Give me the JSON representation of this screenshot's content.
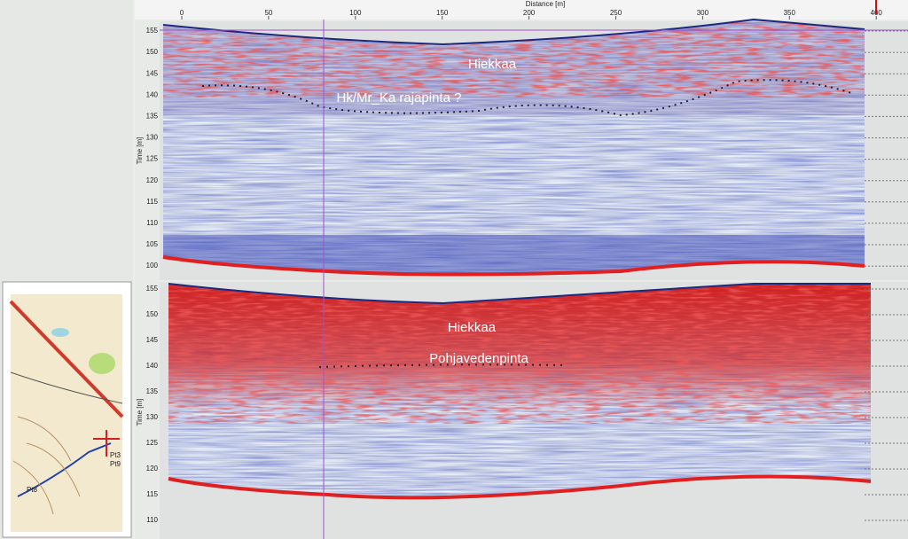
{
  "toolbar": {
    "x_axis_title": "Distance [m]",
    "x_ticks": [
      0,
      50,
      100,
      150,
      200,
      250,
      300,
      350,
      400
    ]
  },
  "top_panel": {
    "y_axis_title": "Time [m]",
    "y_ticks": [
      155,
      150,
      145,
      140,
      135,
      130,
      125,
      120,
      115,
      110,
      105,
      100
    ],
    "annotations": [
      "Hiekkaa",
      "Hk/Mr_Ka rajapinta ?"
    ]
  },
  "bottom_panel": {
    "y_axis_title": "Time [m]",
    "y_ticks": [
      155,
      150,
      145,
      140,
      135,
      130,
      125,
      120,
      115,
      110
    ],
    "annotations": [
      "Hiekkaa",
      "Pohjavedenpinta"
    ]
  },
  "map": {
    "labels": [
      "Pt3",
      "Pt9",
      "Pt8"
    ]
  }
}
